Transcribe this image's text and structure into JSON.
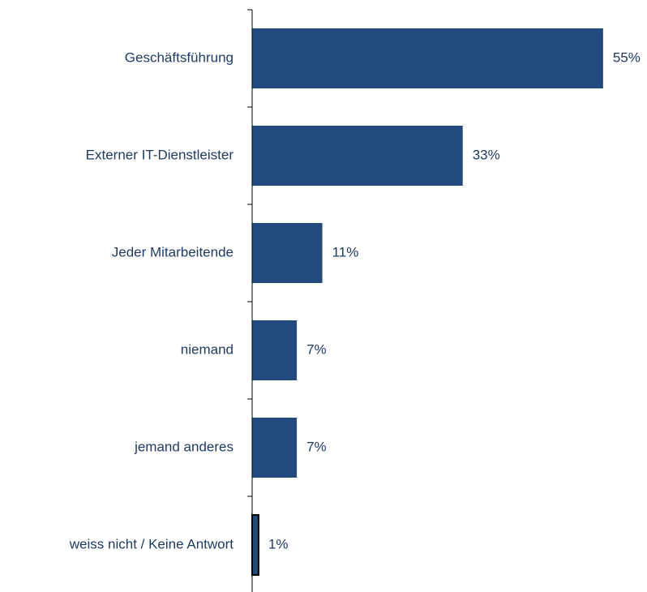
{
  "chart_data": {
    "type": "bar",
    "orientation": "horizontal",
    "categories": [
      "Geschäftsführung",
      "Externer IT-Dienstleister",
      "Jeder Mitarbeitende",
      "niemand",
      "jemand anderes",
      "weiss nicht / Keine Antwort"
    ],
    "values": [
      55,
      33,
      11,
      7,
      7,
      1
    ],
    "value_labels": [
      "55%",
      "33%",
      "11%",
      "7%",
      "7%",
      "1%"
    ],
    "color": "#234a7c"
  }
}
